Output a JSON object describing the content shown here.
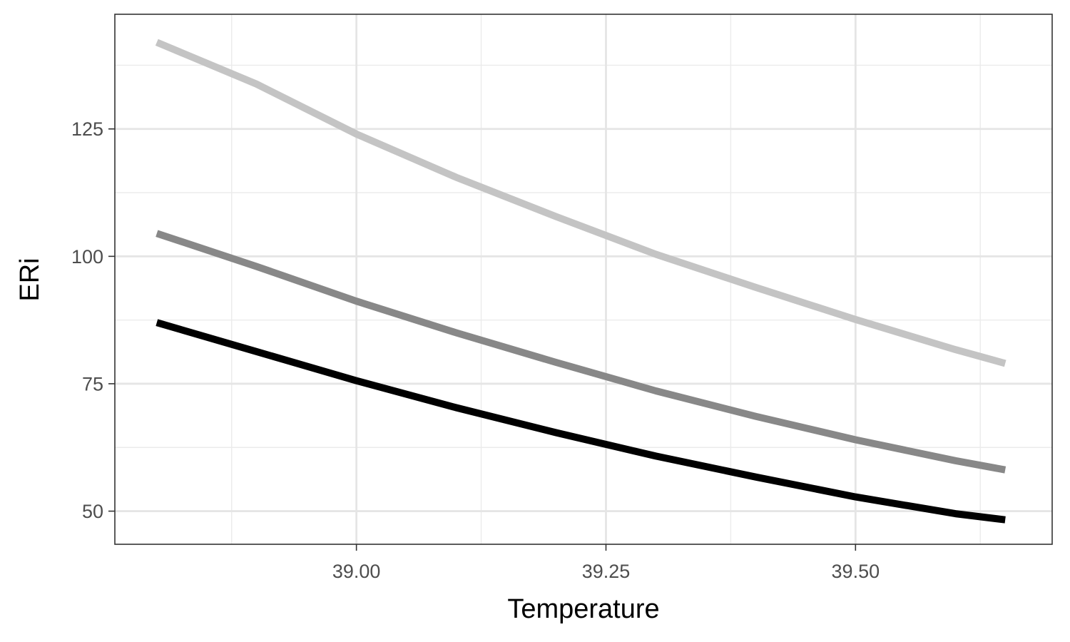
{
  "chart_data": {
    "type": "line",
    "title": "",
    "xlabel": "Temperature",
    "ylabel": "ERi",
    "xlim": [
      38.758,
      39.697
    ],
    "ylim": [
      43.5,
      147.5
    ],
    "x_ticks": [
      39.0,
      39.25,
      39.5
    ],
    "x_tick_labels": [
      "39.00",
      "39.25",
      "39.50"
    ],
    "x_minor_ticks": [
      38.875,
      39.125,
      39.375,
      39.625
    ],
    "y_ticks": [
      50,
      75,
      100,
      125
    ],
    "y_tick_labels": [
      "50",
      "75",
      "100",
      "125"
    ],
    "y_minor_ticks": [
      62.5,
      87.5,
      112.5,
      137.5
    ],
    "grid": true,
    "legend": "none",
    "x": [
      38.8,
      38.9,
      39.0,
      39.1,
      39.2,
      39.3,
      39.4,
      39.5,
      39.6,
      39.65
    ],
    "series": [
      {
        "values": [
          142.0,
          133.8,
          124.0,
          115.5,
          107.8,
          100.4,
          93.9,
          87.6,
          81.7,
          79.0
        ],
        "color": "#c4c4c4"
      },
      {
        "values": [
          104.5,
          98.0,
          91.2,
          85.0,
          79.2,
          73.6,
          68.6,
          64.0,
          59.9,
          58.1
        ],
        "color": "#888888"
      },
      {
        "values": [
          87.0,
          81.3,
          75.6,
          70.3,
          65.4,
          60.8,
          56.7,
          52.8,
          49.5,
          48.3
        ],
        "color": "#000000"
      }
    ]
  }
}
